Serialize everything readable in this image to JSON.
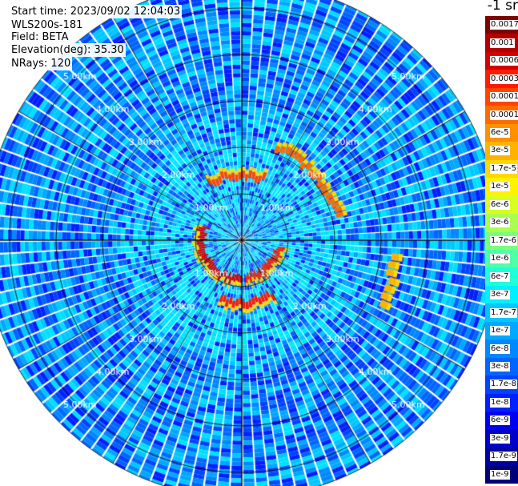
{
  "header": {
    "start_time": "Start time: 2023/09/02 12:04:03",
    "instrument": "WLS200s-181",
    "field": "Field: BETA",
    "elevation": "Elevation(deg): 35.30",
    "nrays": "NRays: 120"
  },
  "colorbar": {
    "unit": "-1 sr",
    "levels": [
      {
        "label": "0.0017",
        "color": "#7f0000"
      },
      {
        "label": "0.001",
        "color": "#b20000"
      },
      {
        "label": "0.0006",
        "color": "#d40000"
      },
      {
        "label": "0.0003",
        "color": "#ff1a00"
      },
      {
        "label": "0.00017",
        "color": "#ff4500"
      },
      {
        "label": "0.0001",
        "color": "#ff6a00"
      },
      {
        "label": "6e-5",
        "color": "#ff9000"
      },
      {
        "label": "3e-5",
        "color": "#ffb300"
      },
      {
        "label": "1.7e-5",
        "color": "#ffd800"
      },
      {
        "label": "1e-5",
        "color": "#fff200"
      },
      {
        "label": "6e-6",
        "color": "#d8ff1f"
      },
      {
        "label": "3e-6",
        "color": "#a8ff4f"
      },
      {
        "label": "1.7e-6",
        "color": "#7cff7a"
      },
      {
        "label": "1e-6",
        "color": "#4fffa8"
      },
      {
        "label": "6e-7",
        "color": "#1fffd8"
      },
      {
        "label": "3e-7",
        "color": "#00f0ff"
      },
      {
        "label": "1.7e-7",
        "color": "#00c8ff"
      },
      {
        "label": "1e-7",
        "color": "#00a8ff"
      },
      {
        "label": "6e-8",
        "color": "#0088ff"
      },
      {
        "label": "3e-8",
        "color": "#0066ff"
      },
      {
        "label": "1.7e-8",
        "color": "#0044ff"
      },
      {
        "label": "1e-8",
        "color": "#0020ff"
      },
      {
        "label": "6e-9",
        "color": "#0000f0"
      },
      {
        "label": "3e-9",
        "color": "#0000c8"
      },
      {
        "label": "1.7e-9",
        "color": "#0000a0"
      },
      {
        "label": "1e-9",
        "color": "#000078"
      }
    ]
  },
  "chart_data": {
    "type": "heatmap",
    "projection": "polar PPI",
    "field": "BETA",
    "rays": 120,
    "range_rings_km": [
      1,
      2,
      3,
      4,
      5
    ],
    "ring_labels": [
      "1.00km",
      "2.00km",
      "3.00km",
      "4.00km",
      "5.00km"
    ],
    "max_range_km": 5.55,
    "spokes_deg": [
      0,
      30,
      60,
      90,
      120,
      150,
      180,
      210,
      240,
      270,
      300,
      330
    ],
    "background_colors": [
      "#0066ff",
      "#0088ff",
      "#00a8ff",
      "#00c8ff",
      "#00e0ff",
      "#0044ff",
      "#0020ff"
    ],
    "high_beta_arcs": [
      {
        "radius_km": 0.85,
        "from_deg": 180,
        "to_deg": 290,
        "color": "#d40000"
      },
      {
        "radius_km": 0.8,
        "from_deg": 100,
        "to_deg": 175,
        "color": "#ff1a00"
      },
      {
        "radius_km": 1.4,
        "from_deg": 330,
        "to_deg": 20,
        "color": "#ff4500"
      },
      {
        "radius_km": 2.1,
        "from_deg": 20,
        "to_deg": 75,
        "color": "#ff6a00"
      },
      {
        "radius_km": 1.35,
        "from_deg": 150,
        "to_deg": 200,
        "color": "#ff1a00"
      },
      {
        "radius_km": 3.3,
        "from_deg": 95,
        "to_deg": 115,
        "color": "#ffb300"
      }
    ]
  }
}
